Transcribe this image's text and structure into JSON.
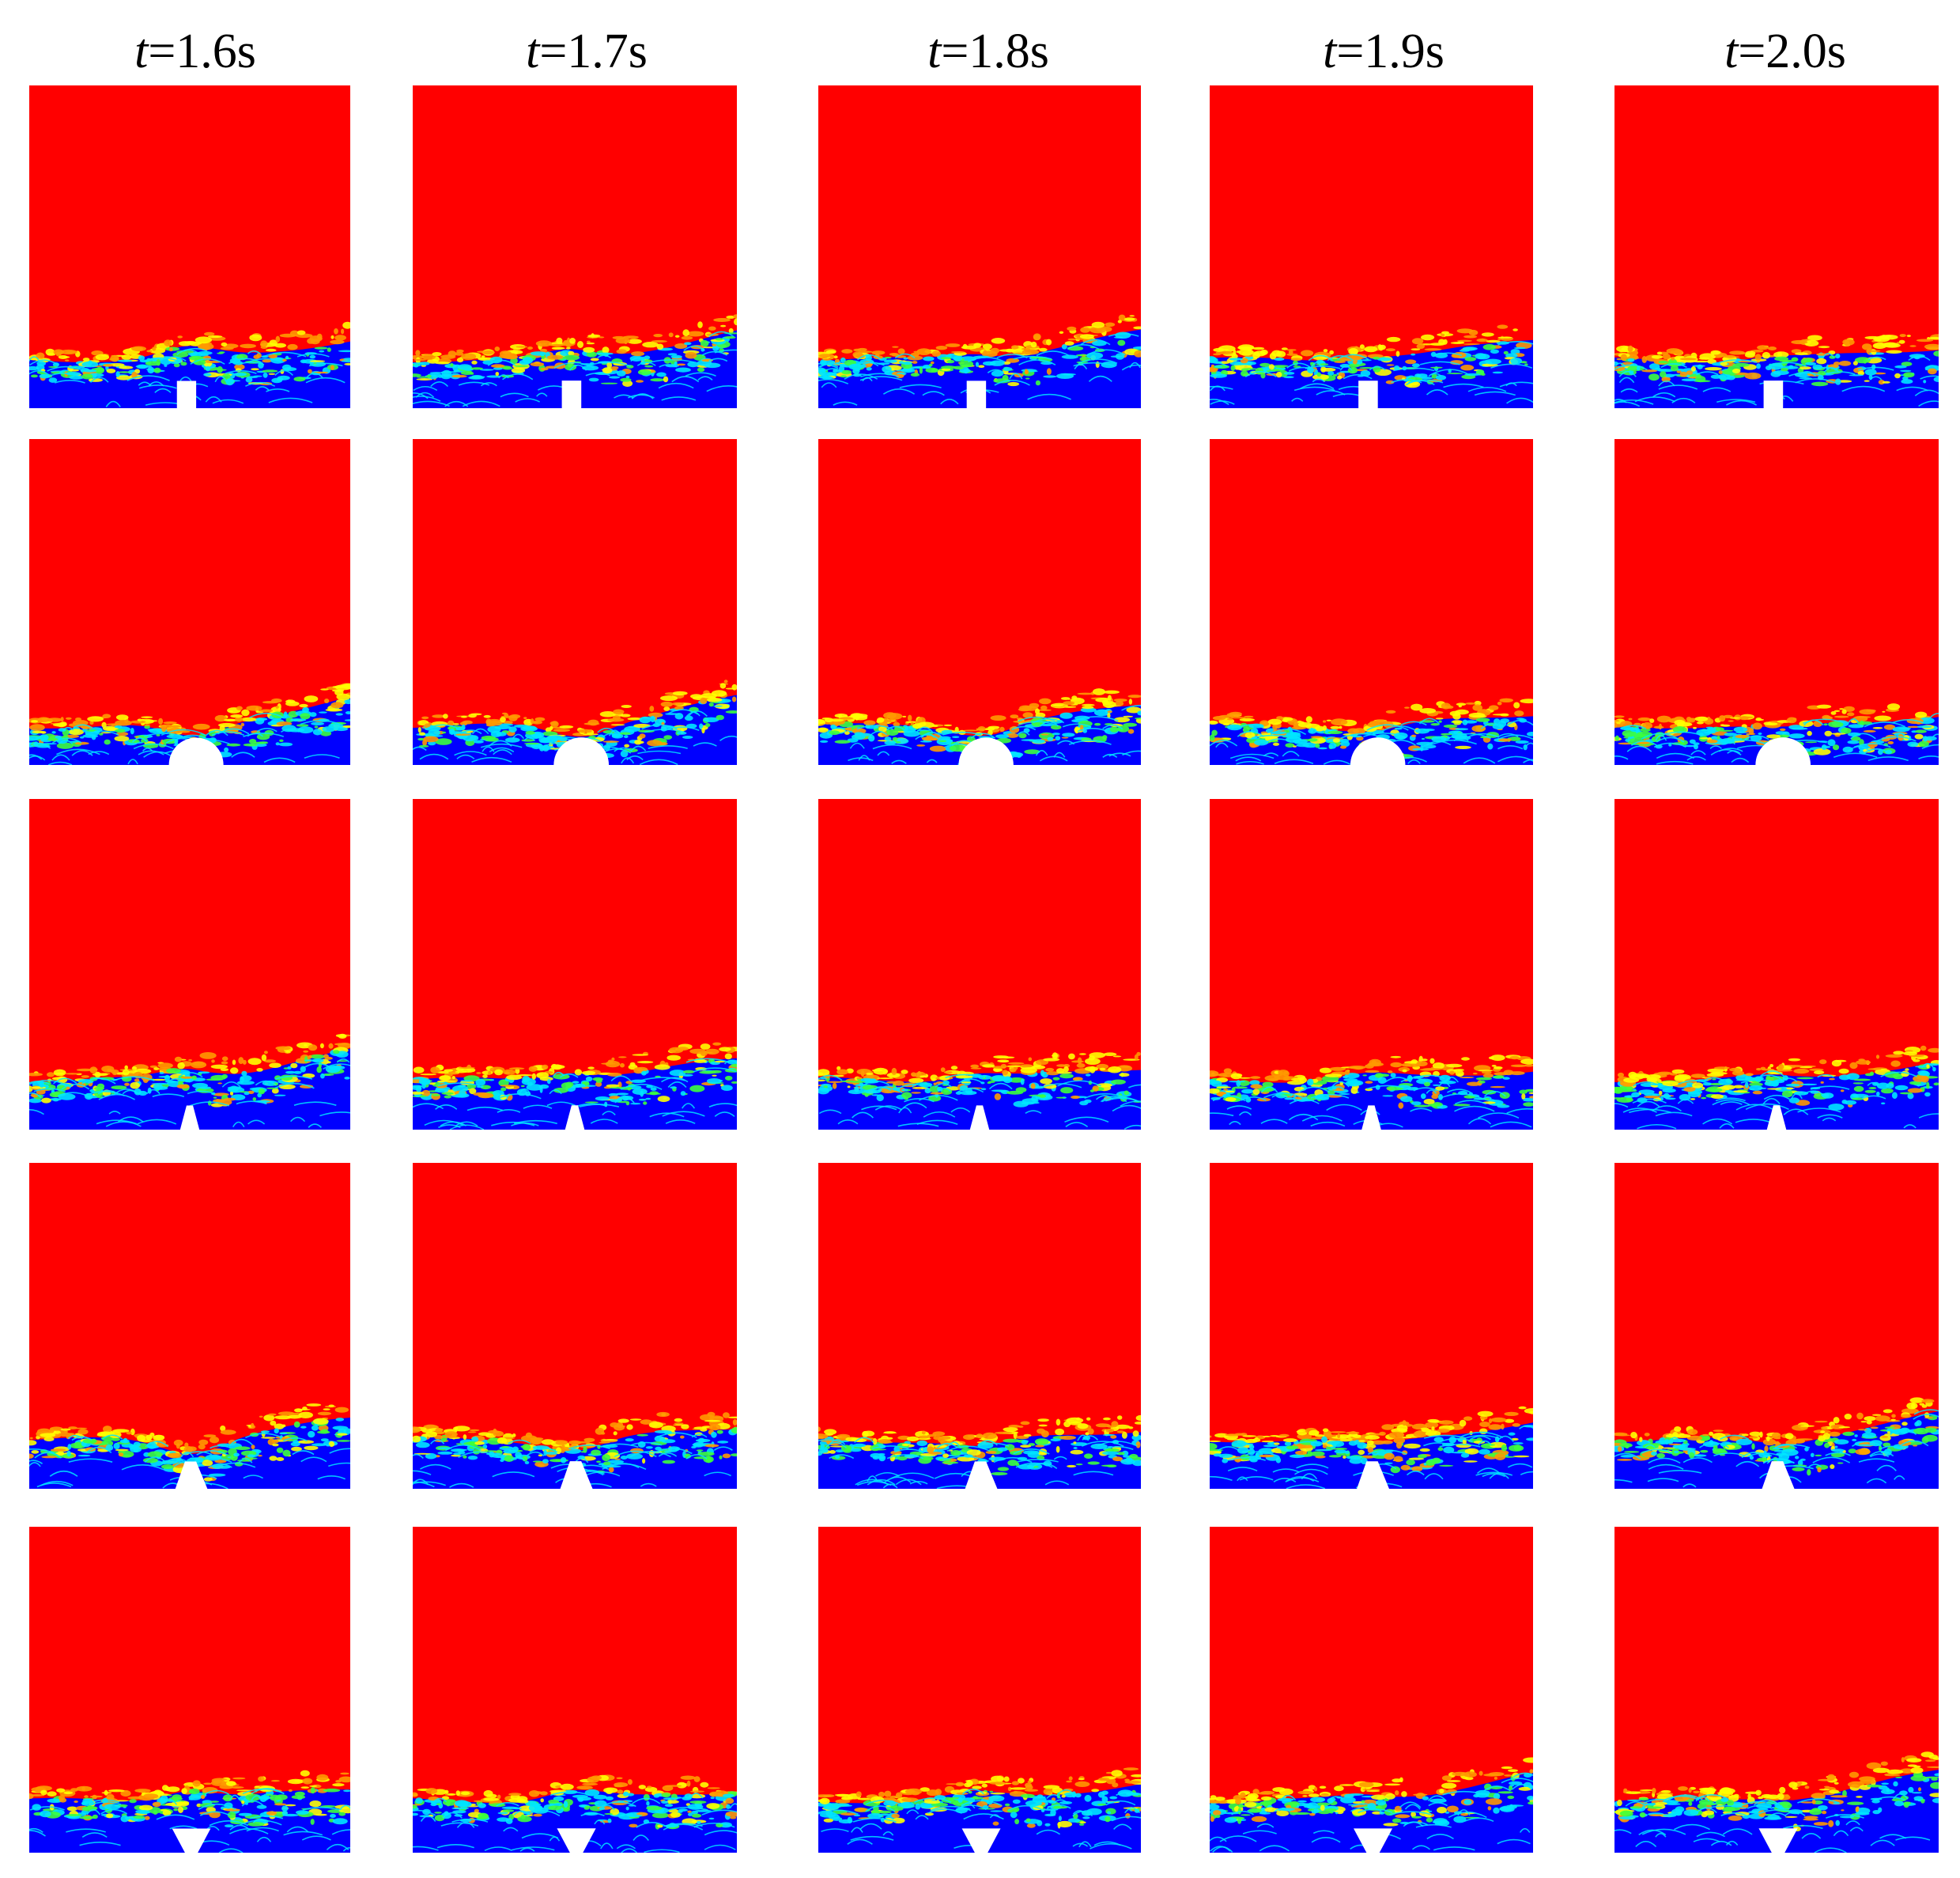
{
  "figure": {
    "columns": [
      {
        "var": "t",
        "rest": "=1.6s"
      },
      {
        "var": "t",
        "rest": "=1.7s"
      },
      {
        "var": "t",
        "rest": "=1.8s"
      },
      {
        "var": "t",
        "rest": "=1.9s"
      },
      {
        "var": "t",
        "rest": "=2.0s"
      }
    ],
    "rows": [
      {
        "obstacle": "rectangle"
      },
      {
        "obstacle": "semicircle"
      },
      {
        "obstacle": "trapezoid-narrow-top"
      },
      {
        "obstacle": "trapezoid-wide"
      },
      {
        "obstacle": "inverted-trapezoid"
      }
    ],
    "colors": {
      "air": "#ff0000",
      "water": "#0000ff",
      "mix_cyan": "#00e5ff",
      "mix_green": "#3cff3c",
      "mix_yellow": "#ffff00",
      "mix_orange": "#ff9900",
      "obstacle": "#ffffff"
    }
  }
}
